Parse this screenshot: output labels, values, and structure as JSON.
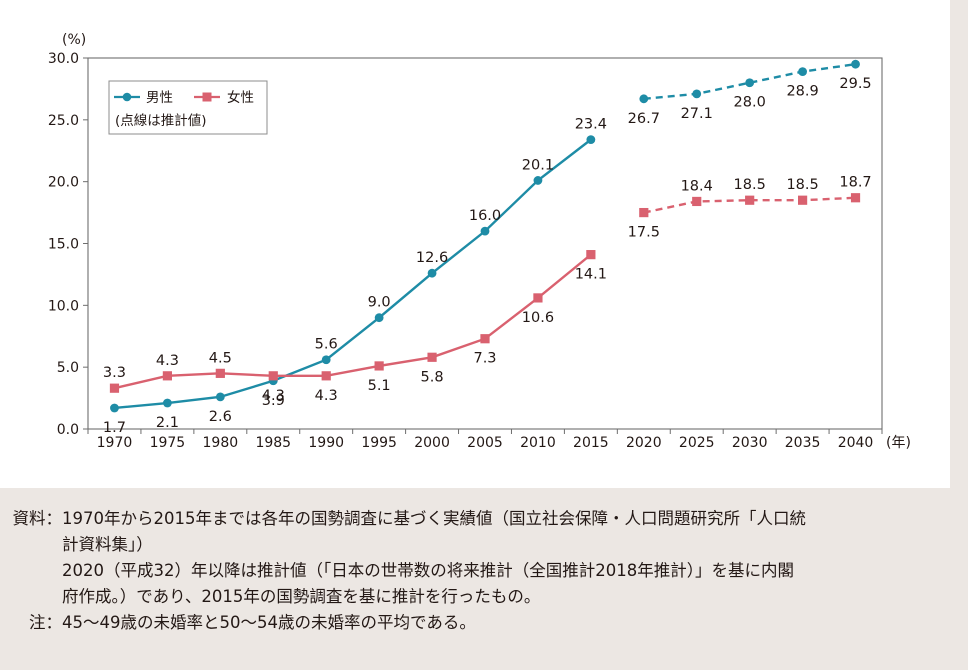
{
  "chart_data": {
    "type": "line",
    "y_unit": "(%)",
    "x_unit": "(年)",
    "ylim": [
      0,
      30
    ],
    "y_ticks": [
      "0.0",
      "5.0",
      "10.0",
      "15.0",
      "20.0",
      "25.0",
      "30.0"
    ],
    "x": [
      1970,
      1975,
      1980,
      1985,
      1990,
      1995,
      2000,
      2005,
      2010,
      2015,
      2020,
      2025,
      2030,
      2035,
      2040
    ],
    "x_tick_labels": [
      "1970",
      "1975",
      "1980",
      "1985",
      "1990",
      "1995",
      "2000",
      "2005",
      "2010",
      "2015",
      "2020",
      "2025",
      "2030",
      "2035",
      "2040"
    ],
    "actual_until": 2015,
    "grid": false,
    "legend": {
      "position": "top-left",
      "note": "(点線は推計値)"
    },
    "series": [
      {
        "name": "男性",
        "color": "#1e8ca6",
        "marker": "circle",
        "values": [
          1.7,
          2.1,
          2.6,
          3.9,
          5.6,
          9.0,
          12.6,
          16.0,
          20.1,
          23.4,
          26.7,
          27.1,
          28.0,
          28.9,
          29.5
        ],
        "labels": [
          "1.7",
          "2.1",
          "2.6",
          "3.9",
          "5.6",
          "9.0",
          "12.6",
          "16.0",
          "20.1",
          "23.4",
          "26.7",
          "27.1",
          "28.0",
          "28.9",
          "29.5"
        ]
      },
      {
        "name": "女性",
        "color": "#d9616f",
        "marker": "square",
        "values": [
          3.3,
          4.3,
          4.5,
          4.3,
          4.3,
          5.1,
          5.8,
          7.3,
          10.6,
          14.1,
          17.5,
          18.4,
          18.5,
          18.5,
          18.7
        ],
        "labels": [
          "3.3",
          "4.3",
          "4.5",
          "4.3",
          "4.3",
          "5.1",
          "5.8",
          "7.3",
          "10.6",
          "14.1",
          "17.5",
          "18.4",
          "18.5",
          "18.5",
          "18.7"
        ]
      }
    ]
  },
  "notes": {
    "source_head": "資料：",
    "source_line1": "1970年から2015年までは各年の国勢調査に基づく実績値（国立社会保障・人口問題研究所「人口統",
    "source_line2": "計資料集」）",
    "source_line3": "2020（平成32）年以降は推計値（「日本の世帯数の将来推計（全国推計2018年推計）」を基に内閣",
    "source_line4": "府作成。）であり、2015年の国勢調査を基に推計を行ったもの。",
    "note_head": "注：",
    "note_line": "45〜49歳の未婚率と50〜54歳の未婚率の平均である。"
  }
}
